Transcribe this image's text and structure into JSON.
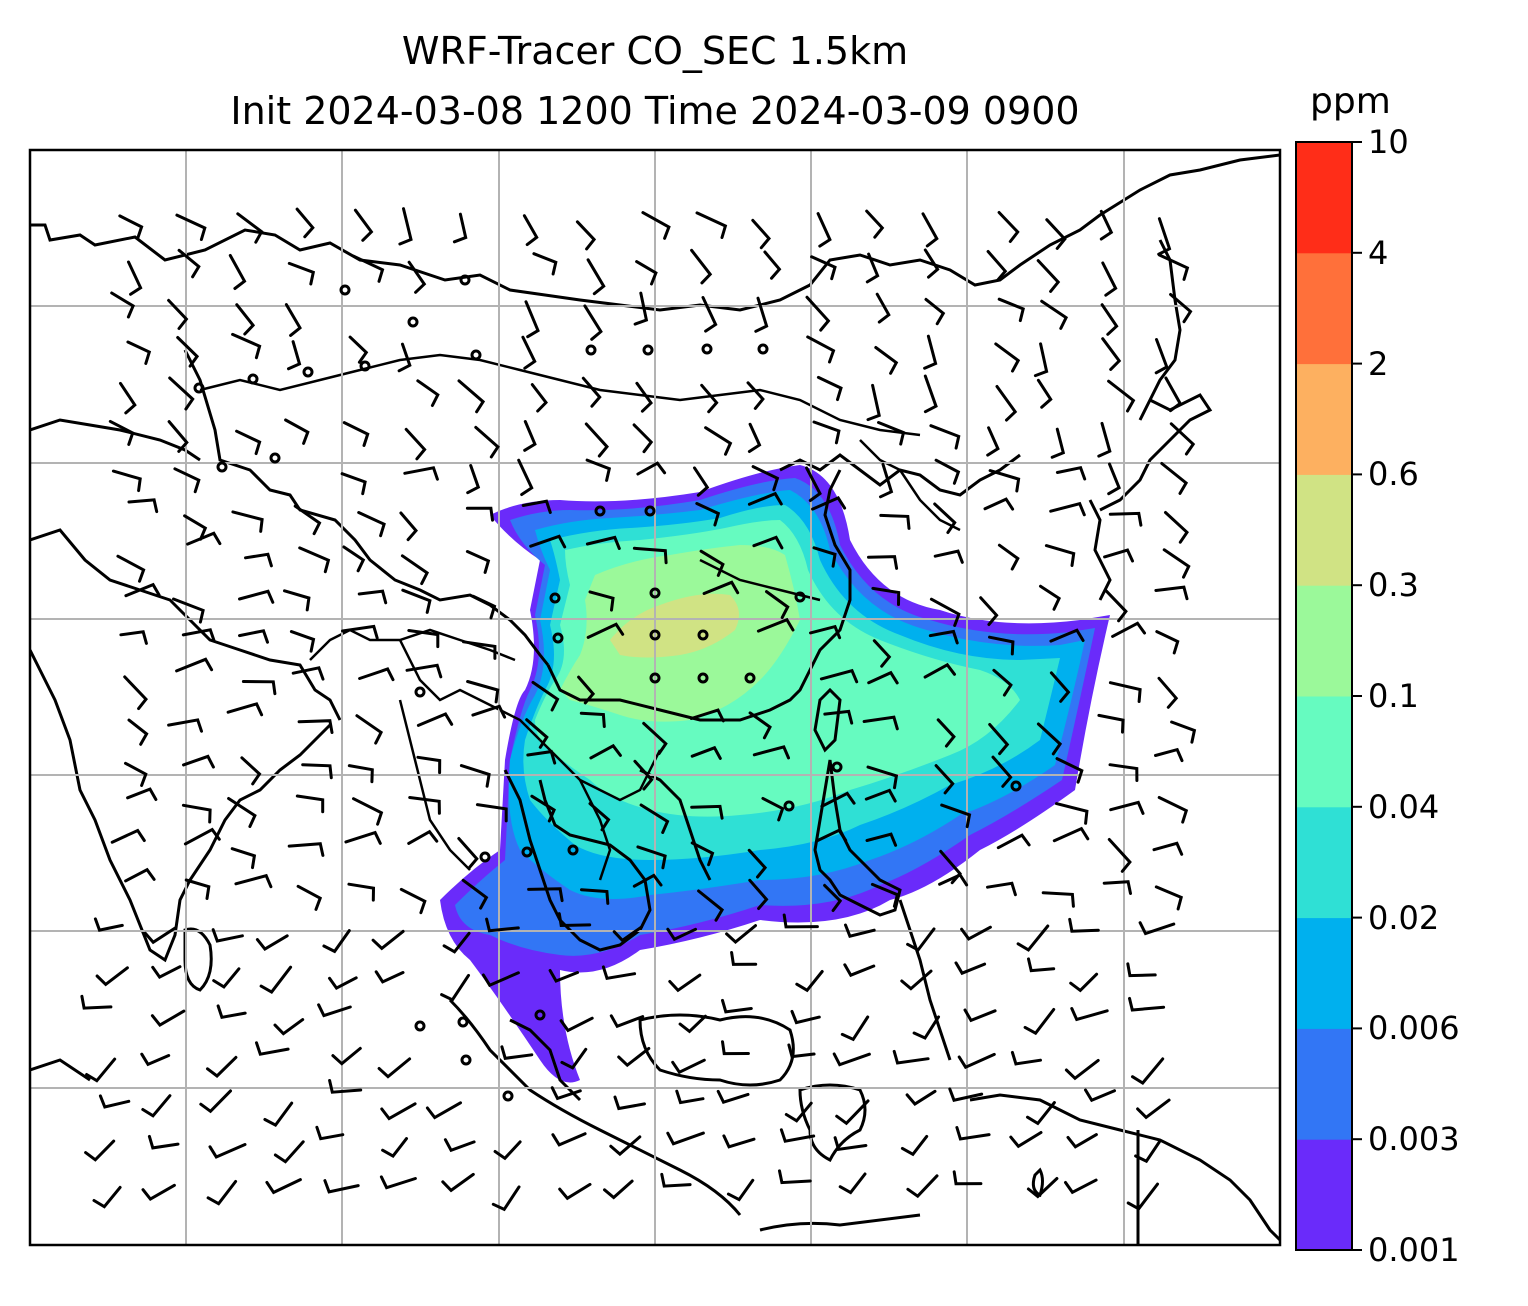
{
  "title": {
    "line1": "WRF-Tracer CO_SEC 1.5km",
    "line2": "Init 2024-03-08 1200 Time 2024-03-09 0900"
  },
  "colorbar": {
    "unit": "ppm",
    "ticks": [
      "0.001",
      "0.003",
      "0.006",
      "0.02",
      "0.04",
      "0.1",
      "0.3",
      "0.6",
      "2",
      "4",
      "10"
    ],
    "colors": [
      "#6a2bfa",
      "#3276f5",
      "#00b0ee",
      "#2fe0d5",
      "#66fbc0",
      "#9bf99a",
      "#d0e384",
      "#fdb060",
      "#ff703a",
      "#ff2d18"
    ]
  },
  "map": {
    "gridlines": true,
    "coastline_color": "#000000",
    "grid_color": "#b3b3b3",
    "features": [
      "coastlines",
      "country-borders",
      "wind-barbs",
      "co-concentration-field"
    ]
  }
}
